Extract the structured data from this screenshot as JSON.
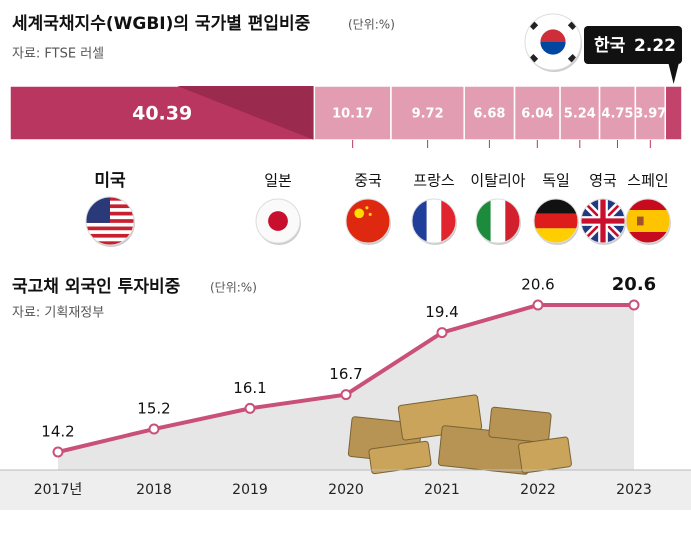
{
  "chart_data": [
    {
      "type": "stacked-bar",
      "title": "세계국채지수(WGBI)의 국가별 편입비중",
      "unit": "(단위:%)",
      "source": "자료: FTSE 러셀",
      "categories": [
        "미국",
        "일본",
        "중국",
        "프랑스",
        "이탈리아",
        "독일",
        "영국",
        "스페인",
        "한국"
      ],
      "values": [
        40.39,
        10.17,
        9.72,
        6.68,
        6.04,
        5.24,
        4.75,
        3.97,
        2.22
      ],
      "colors": [
        "#b8365f",
        "#e39db2",
        "#e39db2",
        "#e39db2",
        "#e39db2",
        "#e39db2",
        "#e39db2",
        "#e39db2",
        "#c2446c"
      ]
    },
    {
      "type": "line",
      "title": "국고채 외국인 투자비중",
      "unit": "(단위:%)",
      "source": "자료: 기획재정부",
      "categories": [
        "2017년",
        "2018",
        "2019",
        "2020",
        "2021",
        "2022",
        "2023"
      ],
      "values": [
        14.2,
        15.2,
        16.1,
        16.7,
        19.4,
        20.6,
        20.6
      ],
      "color": "#c9507a"
    }
  ]
}
